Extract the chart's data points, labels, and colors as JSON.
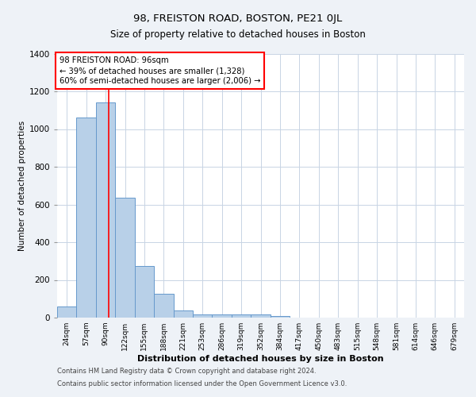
{
  "title_line1": "98, FREISTON ROAD, BOSTON, PE21 0JL",
  "title_line2": "Size of property relative to detached houses in Boston",
  "xlabel": "Distribution of detached houses by size in Boston",
  "ylabel": "Number of detached properties",
  "categories": [
    "24sqm",
    "57sqm",
    "90sqm",
    "122sqm",
    "155sqm",
    "188sqm",
    "221sqm",
    "253sqm",
    "286sqm",
    "319sqm",
    "352sqm",
    "384sqm",
    "417sqm",
    "450sqm",
    "483sqm",
    "515sqm",
    "548sqm",
    "581sqm",
    "614sqm",
    "646sqm",
    "679sqm"
  ],
  "values": [
    60,
    1060,
    1140,
    635,
    275,
    125,
    40,
    18,
    15,
    18,
    18,
    10,
    0,
    0,
    0,
    0,
    0,
    0,
    0,
    0,
    0
  ],
  "bar_color": "#b8d0e8",
  "bar_edge_color": "#6699cc",
  "annotation_line1": "98 FREISTON ROAD: 96sqm",
  "annotation_line2": "← 39% of detached houses are smaller (1,328)",
  "annotation_line3": "60% of semi-detached houses are larger (2,006) →",
  "annotation_box_color": "white",
  "annotation_box_edge_color": "red",
  "vline_color": "red",
  "vline_x": 2.15,
  "ylim": [
    0,
    1400
  ],
  "yticks": [
    0,
    200,
    400,
    600,
    800,
    1000,
    1200,
    1400
  ],
  "background_color": "#eef2f7",
  "plot_bg_color": "white",
  "grid_color": "#c8d4e4",
  "footer_line1": "Contains HM Land Registry data © Crown copyright and database right 2024.",
  "footer_line2": "Contains public sector information licensed under the Open Government Licence v3.0."
}
